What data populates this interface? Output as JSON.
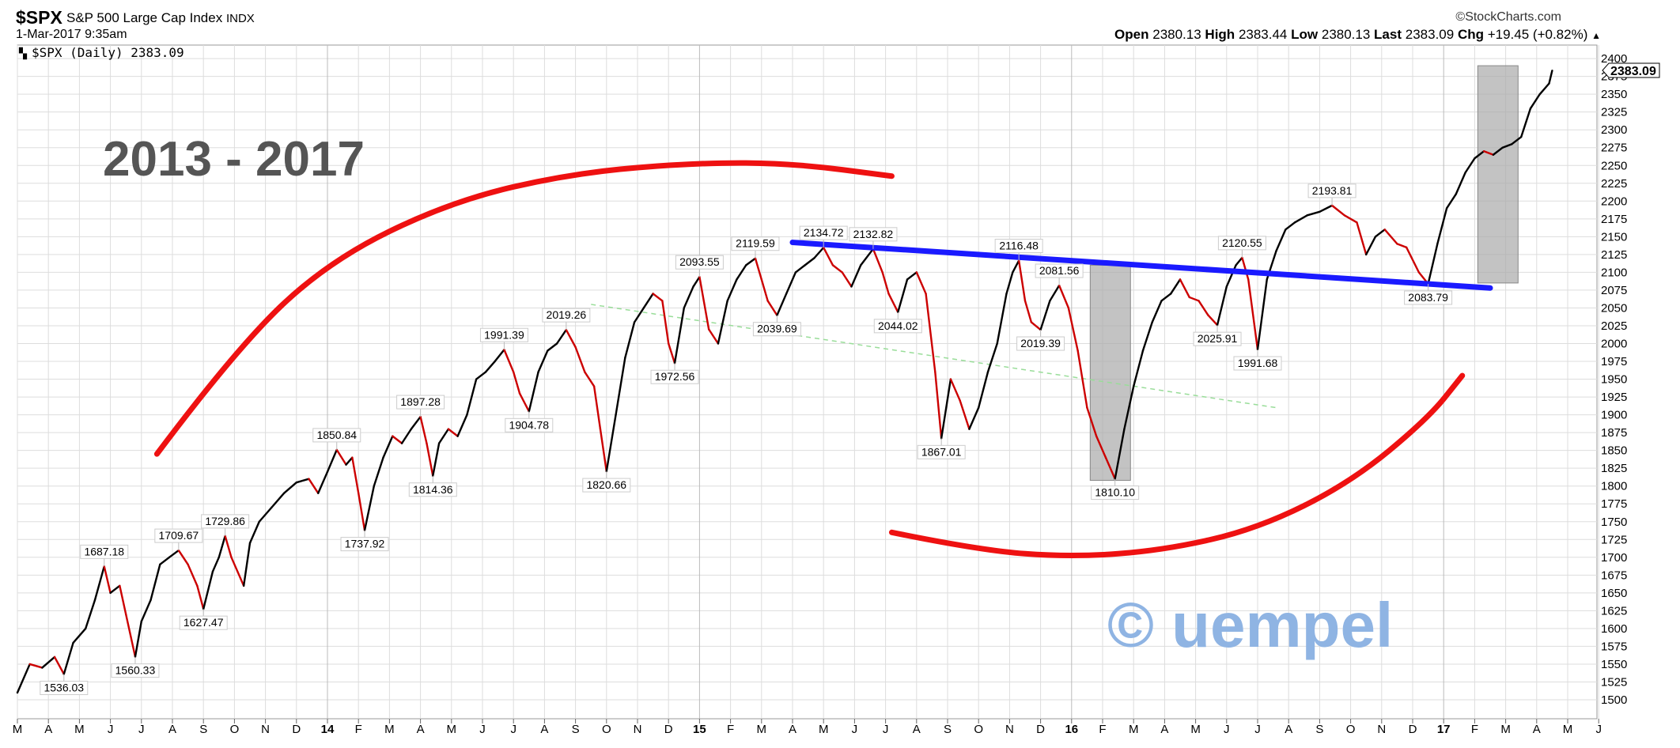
{
  "header": {
    "symbol": "$SPX",
    "name": "S&P 500 Large Cap Index",
    "exchange": "INDX",
    "date": "1-Mar-2017 9:35am",
    "source": "StockCharts.com",
    "ohlc": {
      "open_label": "Open",
      "open": "2380.13",
      "high_label": "High",
      "high": "2383.44",
      "low_label": "Low",
      "low": "2380.13",
      "last_label": "Last",
      "last": "2383.09",
      "chg_label": "Chg",
      "chg": "+19.45 (+0.82%)"
    }
  },
  "chart_data": {
    "type": "line",
    "legend": "$SPX (Daily) 2383.09",
    "last_value_label": "2383.09",
    "ylim": [
      1500,
      2400
    ],
    "y_ticks": [
      1500,
      1525,
      1550,
      1575,
      1600,
      1625,
      1650,
      1675,
      1700,
      1725,
      1750,
      1775,
      1800,
      1825,
      1850,
      1875,
      1900,
      1925,
      1950,
      1975,
      2000,
      2025,
      2050,
      2075,
      2100,
      2125,
      2150,
      2175,
      2200,
      2225,
      2250,
      2275,
      2300,
      2325,
      2350,
      2375,
      2400
    ],
    "x_months": [
      "M",
      "A",
      "M",
      "J",
      "J",
      "A",
      "S",
      "O",
      "N",
      "D",
      "14",
      "F",
      "M",
      "A",
      "M",
      "J",
      "J",
      "A",
      "S",
      "O",
      "N",
      "D",
      "15",
      "F",
      "M",
      "A",
      "M",
      "J",
      "J",
      "A",
      "S",
      "O",
      "N",
      "D",
      "16",
      "F",
      "M",
      "A",
      "M",
      "J",
      "J",
      "A",
      "S",
      "O",
      "N",
      "D",
      "17",
      "F",
      "M",
      "A",
      "M",
      "J"
    ],
    "year_marks": [
      "14",
      "15",
      "16",
      "17"
    ],
    "series": [
      {
        "points": [
          [
            0,
            1510
          ],
          [
            0.4,
            1550
          ],
          [
            0.8,
            1545
          ],
          [
            1.2,
            1560
          ],
          [
            1.5,
            1536
          ],
          [
            1.8,
            1580
          ],
          [
            2.2,
            1600
          ],
          [
            2.5,
            1640
          ],
          [
            2.8,
            1687.18
          ],
          [
            3.0,
            1650
          ],
          [
            3.3,
            1660
          ],
          [
            3.5,
            1620
          ],
          [
            3.8,
            1560.33
          ],
          [
            4.0,
            1610
          ],
          [
            4.3,
            1640
          ],
          [
            4.6,
            1690
          ],
          [
            4.9,
            1700
          ],
          [
            5.2,
            1709.67
          ],
          [
            5.5,
            1690
          ],
          [
            5.8,
            1660
          ],
          [
            6.0,
            1627.47
          ],
          [
            6.3,
            1680
          ],
          [
            6.5,
            1700
          ],
          [
            6.7,
            1729.86
          ],
          [
            6.9,
            1700
          ],
          [
            7.1,
            1680
          ],
          [
            7.3,
            1660
          ],
          [
            7.5,
            1720
          ],
          [
            7.8,
            1750
          ],
          [
            8.2,
            1770
          ],
          [
            8.6,
            1790
          ],
          [
            9.0,
            1805
          ],
          [
            9.4,
            1810
          ],
          [
            9.7,
            1790
          ],
          [
            10.0,
            1820
          ],
          [
            10.3,
            1850.84
          ],
          [
            10.6,
            1830
          ],
          [
            10.8,
            1840
          ],
          [
            11.0,
            1790
          ],
          [
            11.2,
            1737.92
          ],
          [
            11.5,
            1800
          ],
          [
            11.8,
            1840
          ],
          [
            12.1,
            1870
          ],
          [
            12.4,
            1860
          ],
          [
            12.7,
            1880
          ],
          [
            13.0,
            1897.28
          ],
          [
            13.2,
            1860
          ],
          [
            13.4,
            1814.36
          ],
          [
            13.6,
            1860
          ],
          [
            13.9,
            1880
          ],
          [
            14.2,
            1870
          ],
          [
            14.5,
            1900
          ],
          [
            14.8,
            1950
          ],
          [
            15.1,
            1960
          ],
          [
            15.4,
            1975
          ],
          [
            15.7,
            1991.39
          ],
          [
            16.0,
            1960
          ],
          [
            16.2,
            1930
          ],
          [
            16.5,
            1904.78
          ],
          [
            16.8,
            1960
          ],
          [
            17.1,
            1990
          ],
          [
            17.4,
            2000
          ],
          [
            17.7,
            2019.26
          ],
          [
            18.0,
            1995
          ],
          [
            18.3,
            1960
          ],
          [
            18.6,
            1940
          ],
          [
            18.8,
            1880
          ],
          [
            19.0,
            1820.66
          ],
          [
            19.3,
            1900
          ],
          [
            19.6,
            1980
          ],
          [
            19.9,
            2030
          ],
          [
            20.2,
            2050
          ],
          [
            20.5,
            2070
          ],
          [
            20.8,
            2060
          ],
          [
            21.0,
            2000
          ],
          [
            21.2,
            1972.56
          ],
          [
            21.5,
            2050
          ],
          [
            21.8,
            2080
          ],
          [
            22.0,
            2093.55
          ],
          [
            22.3,
            2020
          ],
          [
            22.6,
            2000
          ],
          [
            22.9,
            2060
          ],
          [
            23.2,
            2090
          ],
          [
            23.5,
            2110
          ],
          [
            23.8,
            2119.59
          ],
          [
            24.0,
            2090
          ],
          [
            24.2,
            2060
          ],
          [
            24.5,
            2039.69
          ],
          [
            24.8,
            2070
          ],
          [
            25.1,
            2100
          ],
          [
            25.4,
            2110
          ],
          [
            25.7,
            2120
          ],
          [
            26.0,
            2134.72
          ],
          [
            26.3,
            2110
          ],
          [
            26.6,
            2100
          ],
          [
            26.9,
            2080
          ],
          [
            27.2,
            2110
          ],
          [
            27.6,
            2132.82
          ],
          [
            27.9,
            2100
          ],
          [
            28.1,
            2070
          ],
          [
            28.4,
            2044.02
          ],
          [
            28.7,
            2090
          ],
          [
            29.0,
            2100
          ],
          [
            29.3,
            2070
          ],
          [
            29.6,
            1960
          ],
          [
            29.8,
            1867.01
          ],
          [
            30.1,
            1950
          ],
          [
            30.4,
            1920
          ],
          [
            30.7,
            1880
          ],
          [
            31.0,
            1910
          ],
          [
            31.3,
            1960
          ],
          [
            31.6,
            2000
          ],
          [
            31.9,
            2070
          ],
          [
            32.1,
            2100
          ],
          [
            32.3,
            2116.48
          ],
          [
            32.5,
            2060
          ],
          [
            32.7,
            2030
          ],
          [
            33.0,
            2019.39
          ],
          [
            33.3,
            2060
          ],
          [
            33.6,
            2081.56
          ],
          [
            33.9,
            2050
          ],
          [
            34.2,
            1990
          ],
          [
            34.5,
            1910
          ],
          [
            34.8,
            1870
          ],
          [
            35.1,
            1840
          ],
          [
            35.4,
            1810.1
          ],
          [
            35.7,
            1880
          ],
          [
            36.0,
            1940
          ],
          [
            36.3,
            1990
          ],
          [
            36.6,
            2030
          ],
          [
            36.9,
            2060
          ],
          [
            37.2,
            2070
          ],
          [
            37.5,
            2090
          ],
          [
            37.8,
            2065
          ],
          [
            38.1,
            2060
          ],
          [
            38.4,
            2040
          ],
          [
            38.7,
            2025.91
          ],
          [
            39.0,
            2080
          ],
          [
            39.3,
            2110
          ],
          [
            39.5,
            2120.55
          ],
          [
            39.7,
            2090
          ],
          [
            40.0,
            1991.68
          ],
          [
            40.3,
            2090
          ],
          [
            40.6,
            2130
          ],
          [
            40.9,
            2160
          ],
          [
            41.2,
            2170
          ],
          [
            41.6,
            2180
          ],
          [
            42.0,
            2185
          ],
          [
            42.4,
            2193.81
          ],
          [
            42.8,
            2180
          ],
          [
            43.2,
            2170
          ],
          [
            43.5,
            2125
          ],
          [
            43.8,
            2150
          ],
          [
            44.1,
            2160
          ],
          [
            44.5,
            2140
          ],
          [
            44.8,
            2135
          ],
          [
            45.2,
            2100
          ],
          [
            45.5,
            2083.79
          ],
          [
            45.8,
            2140
          ],
          [
            46.1,
            2190
          ],
          [
            46.4,
            2210
          ],
          [
            46.7,
            2240
          ],
          [
            47.0,
            2260
          ],
          [
            47.3,
            2270
          ],
          [
            47.6,
            2265
          ],
          [
            47.9,
            2275
          ],
          [
            48.2,
            2280
          ],
          [
            48.5,
            2290
          ],
          [
            48.8,
            2330
          ],
          [
            49.1,
            2350
          ],
          [
            49.4,
            2365
          ],
          [
            49.5,
            2383.09
          ]
        ]
      }
    ],
    "annotations": [
      {
        "x": 1.5,
        "y": 1536.03,
        "text": "1536.03",
        "pos": "below"
      },
      {
        "x": 2.8,
        "y": 1687.18,
        "text": "1687.18",
        "pos": "above"
      },
      {
        "x": 3.8,
        "y": 1560.33,
        "text": "1560.33",
        "pos": "below"
      },
      {
        "x": 5.2,
        "y": 1709.67,
        "text": "1709.67",
        "pos": "above"
      },
      {
        "x": 6.0,
        "y": 1627.47,
        "text": "1627.47",
        "pos": "below"
      },
      {
        "x": 6.7,
        "y": 1729.86,
        "text": "1729.86",
        "pos": "above"
      },
      {
        "x": 10.3,
        "y": 1850.84,
        "text": "1850.84",
        "pos": "above"
      },
      {
        "x": 11.2,
        "y": 1737.92,
        "text": "1737.92",
        "pos": "below"
      },
      {
        "x": 13.0,
        "y": 1897.28,
        "text": "1897.28",
        "pos": "above"
      },
      {
        "x": 13.4,
        "y": 1814.36,
        "text": "1814.36",
        "pos": "below"
      },
      {
        "x": 15.7,
        "y": 1991.39,
        "text": "1991.39",
        "pos": "above"
      },
      {
        "x": 16.5,
        "y": 1904.78,
        "text": "1904.78",
        "pos": "below"
      },
      {
        "x": 17.7,
        "y": 2019.26,
        "text": "2019.26",
        "pos": "above"
      },
      {
        "x": 19.0,
        "y": 1820.66,
        "text": "1820.66",
        "pos": "below"
      },
      {
        "x": 21.2,
        "y": 1972.56,
        "text": "1972.56",
        "pos": "below"
      },
      {
        "x": 22.0,
        "y": 2093.55,
        "text": "2093.55",
        "pos": "above"
      },
      {
        "x": 23.8,
        "y": 2119.59,
        "text": "2119.59",
        "pos": "above"
      },
      {
        "x": 24.5,
        "y": 2039.69,
        "text": "2039.69",
        "pos": "below"
      },
      {
        "x": 26.0,
        "y": 2134.72,
        "text": "2134.72",
        "pos": "above"
      },
      {
        "x": 27.6,
        "y": 2132.82,
        "text": "2132.82",
        "pos": "above"
      },
      {
        "x": 28.4,
        "y": 2044.02,
        "text": "2044.02",
        "pos": "below"
      },
      {
        "x": 29.8,
        "y": 1867.01,
        "text": "1867.01",
        "pos": "below"
      },
      {
        "x": 32.3,
        "y": 2116.48,
        "text": "2116.48",
        "pos": "above"
      },
      {
        "x": 33.0,
        "y": 2019.39,
        "text": "2019.39",
        "pos": "below"
      },
      {
        "x": 33.6,
        "y": 2081.56,
        "text": "2081.56",
        "pos": "above"
      },
      {
        "x": 35.4,
        "y": 1810.1,
        "text": "1810.10",
        "pos": "below"
      },
      {
        "x": 38.7,
        "y": 2025.91,
        "text": "2025.91",
        "pos": "below"
      },
      {
        "x": 39.5,
        "y": 2120.55,
        "text": "2120.55",
        "pos": "above"
      },
      {
        "x": 40.0,
        "y": 1991.68,
        "text": "1991.68",
        "pos": "below"
      },
      {
        "x": 42.4,
        "y": 2193.81,
        "text": "2193.81",
        "pos": "above"
      },
      {
        "x": 45.5,
        "y": 2083.79,
        "text": "2083.79",
        "pos": "below"
      }
    ],
    "overlay_text": "2013 - 2017",
    "watermark": "© uempel",
    "colors": {
      "price_up": "#000000",
      "price_down": "#cc0000",
      "trendline": "#1a1aff",
      "arcs": "#ee1111",
      "highlight_box": "#aaaaaa",
      "watermark": "#8fb4e3",
      "dashed_trend": "#99dd99",
      "grid": "#dddddd"
    },
    "grid": true,
    "trendline": {
      "x1": 25.0,
      "y1": 2142,
      "x2": 47.5,
      "y2": 2078
    },
    "dashed_trendline": {
      "x1": 18.5,
      "y1": 2055,
      "x2": 40.6,
      "y2": 1910
    },
    "highlight_boxes": [
      {
        "x1": 34.6,
        "x2": 35.9,
        "y1": 1808,
        "y2": 2110
      },
      {
        "x1": 47.1,
        "x2": 48.4,
        "y1": 2085,
        "y2": 2390
      }
    ],
    "arcs": [
      {
        "points": [
          [
            4.5,
            1845
          ],
          [
            7.0,
            1990
          ],
          [
            10.0,
            2115
          ],
          [
            14.0,
            2200
          ],
          [
            18.0,
            2240
          ],
          [
            22.0,
            2254
          ],
          [
            25.0,
            2253
          ],
          [
            28.2,
            2235
          ]
        ]
      },
      {
        "points": [
          [
            28.2,
            1735
          ],
          [
            31.0,
            1710
          ],
          [
            34.0,
            1700
          ],
          [
            37.0,
            1710
          ],
          [
            40.0,
            1740
          ],
          [
            43.0,
            1805
          ],
          [
            45.5,
            1895
          ],
          [
            46.6,
            1955
          ]
        ]
      }
    ]
  }
}
